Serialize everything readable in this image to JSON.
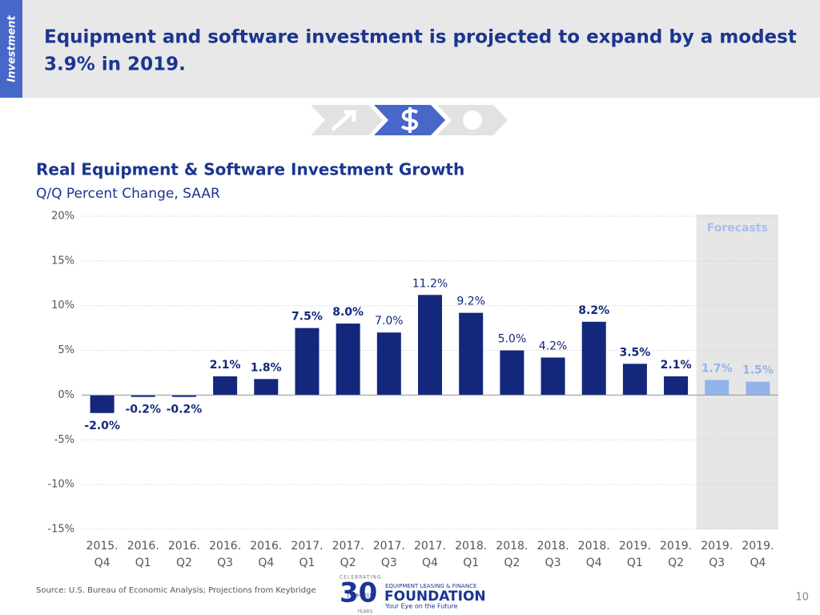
{
  "header": {
    "section": "Investment",
    "title_lines": [
      "Equipment and software investment is projected to expand by a modest",
      "3.9% in 2019."
    ]
  },
  "chart_data": {
    "type": "bar",
    "title": "Real Equipment & Software Investment Growth",
    "subtitle": "Q/Q Percent Change, SAAR",
    "categories": [
      [
        "2015.",
        "Q4"
      ],
      [
        "2016.",
        "Q1"
      ],
      [
        "2016.",
        "Q2"
      ],
      [
        "2016.",
        "Q3"
      ],
      [
        "2016.",
        "Q4"
      ],
      [
        "2017.",
        "Q1"
      ],
      [
        "2017.",
        "Q2"
      ],
      [
        "2017.",
        "Q3"
      ],
      [
        "2017.",
        "Q4"
      ],
      [
        "2018.",
        "Q1"
      ],
      [
        "2018.",
        "Q2"
      ],
      [
        "2018.",
        "Q3"
      ],
      [
        "2018.",
        "Q4"
      ],
      [
        "2019.",
        "Q1"
      ],
      [
        "2019.",
        "Q2"
      ],
      [
        "2019.",
        "Q3"
      ],
      [
        "2019.",
        "Q4"
      ]
    ],
    "values": [
      -2.0,
      -0.2,
      -0.2,
      2.1,
      1.8,
      7.5,
      8.0,
      7.0,
      11.2,
      9.2,
      5.0,
      4.2,
      8.2,
      3.5,
      2.1,
      1.7,
      1.5
    ],
    "value_labels": [
      "-2.0%",
      "-0.2%",
      "-0.2%",
      "2.1%",
      "1.8%",
      "7.5%",
      "8.0%",
      "7.0%",
      "11.2%",
      "9.2%",
      "5.0%",
      "4.2%",
      "8.2%",
      "3.5%",
      "2.1%",
      "1.7%",
      "1.5%"
    ],
    "value_label_bold": [
      true,
      true,
      true,
      true,
      true,
      true,
      true,
      false,
      false,
      false,
      false,
      false,
      true,
      true,
      true,
      true,
      true
    ],
    "color": "#13277c",
    "forecast_color": "#93b4e8",
    "forecast_from_index": 15,
    "forecast_label": "Forecasts",
    "ylim": [
      -15,
      20
    ],
    "yticks": [
      {
        "value": -15,
        "label": "-15%"
      },
      {
        "value": -10,
        "label": "-10%"
      },
      {
        "value": -5,
        "label": "-5%"
      },
      {
        "value": 0,
        "label": "0%"
      },
      {
        "value": 5,
        "label": "5%"
      },
      {
        "value": 10,
        "label": "10%"
      },
      {
        "value": 15,
        "label": "15%"
      },
      {
        "value": 20,
        "label": "20%"
      }
    ],
    "grid": true
  },
  "footer": {
    "source": "Source: U.S. Bureau of Economic Analysis; Projections from Keybridge",
    "page_number": "10"
  },
  "logo": {
    "celebrating": "CELEBRATING",
    "number": "30",
    "years_range": "1989-2019",
    "years": "YEARS",
    "org_line": "EQUIPMENT LEASING & FINANCE",
    "name": "FOUNDATION",
    "tagline": "Your Eye on the Future"
  }
}
